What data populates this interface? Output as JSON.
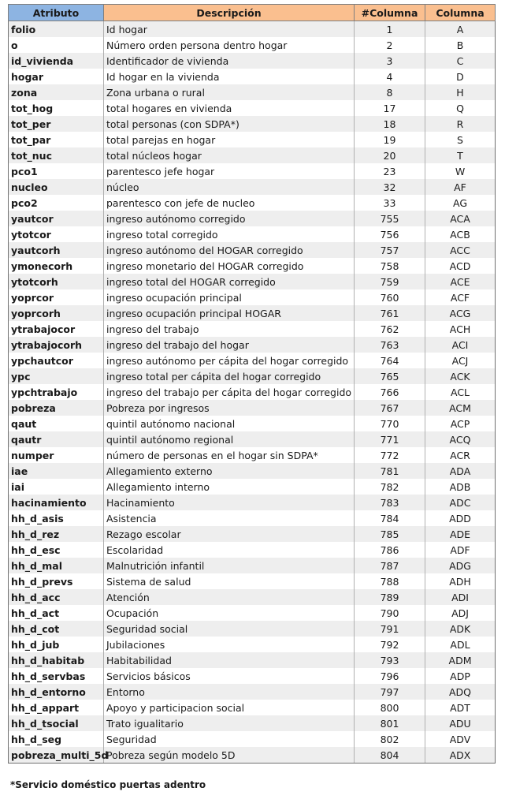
{
  "header": {
    "col1": "Atributo",
    "col2": "Descripción",
    "col3": "#Columna",
    "col4": "Columna"
  },
  "colors": {
    "header_blue": "#8db4e2",
    "header_orange": "#fabf8f",
    "row_alt": "#eeeeee"
  },
  "rows": [
    [
      "folio",
      "Id hogar",
      "1",
      "A"
    ],
    [
      "o",
      "Número orden persona dentro hogar",
      "2",
      "B"
    ],
    [
      "id_vivienda",
      "Identificador de vivienda",
      "3",
      "C"
    ],
    [
      "hogar",
      "Id hogar en la vivienda",
      "4",
      "D"
    ],
    [
      "zona",
      "Zona urbana o rural",
      "8",
      "H"
    ],
    [
      "tot_hog",
      "total hogares en vivienda",
      "17",
      "Q"
    ],
    [
      "tot_per",
      "total personas (con SDPA*)",
      "18",
      "R"
    ],
    [
      "tot_par",
      "total parejas en hogar",
      "19",
      "S"
    ],
    [
      "tot_nuc",
      "total núcleos hogar",
      "20",
      "T"
    ],
    [
      "pco1",
      "parentesco jefe hogar",
      "23",
      "W"
    ],
    [
      "nucleo",
      "núcleo",
      "32",
      "AF"
    ],
    [
      "pco2",
      "parentesco con jefe de nucleo",
      "33",
      "AG"
    ],
    [
      "yautcor",
      "ingreso autónomo corregido",
      "755",
      "ACA"
    ],
    [
      "ytotcor",
      "ingreso total corregido",
      "756",
      "ACB"
    ],
    [
      "yautcorh",
      "ingreso autónomo del HOGAR corregido",
      "757",
      "ACC"
    ],
    [
      "ymonecorh",
      "ingreso monetario del HOGAR corregido",
      "758",
      "ACD"
    ],
    [
      "ytotcorh",
      "ingreso total del HOGAR corregido",
      "759",
      "ACE"
    ],
    [
      "yoprcor",
      "ingreso ocupación principal",
      "760",
      "ACF"
    ],
    [
      "yoprcorh",
      "ingreso ocupación principal HOGAR",
      "761",
      "ACG"
    ],
    [
      "ytrabajocor",
      "ingreso del trabajo",
      "762",
      "ACH"
    ],
    [
      "ytrabajocorh",
      "ingreso del trabajo del hogar",
      "763",
      "ACI"
    ],
    [
      "ypchautcor",
      "ingreso autónomo per cápita del hogar corregido",
      "764",
      "ACJ"
    ],
    [
      "ypc",
      "ingreso total per cápita del hogar corregido",
      "765",
      "ACK"
    ],
    [
      "ypchtrabajo",
      "ingreso del trabajo per cápita del hogar corregido",
      "766",
      "ACL"
    ],
    [
      "pobreza",
      "Pobreza por ingresos",
      "767",
      "ACM"
    ],
    [
      "qaut",
      "quintil autónomo nacional",
      "770",
      "ACP"
    ],
    [
      "qautr",
      "quintil autónomo regional",
      "771",
      "ACQ"
    ],
    [
      "numper",
      "número de personas en el hogar sin SDPA*",
      "772",
      "ACR"
    ],
    [
      "iae",
      "Allegamiento externo",
      "781",
      "ADA"
    ],
    [
      "iai",
      "Allegamiento interno",
      "782",
      "ADB"
    ],
    [
      "hacinamiento",
      "Hacinamiento",
      "783",
      "ADC"
    ],
    [
      "hh_d_asis",
      "Asistencia",
      "784",
      "ADD"
    ],
    [
      "hh_d_rez",
      "Rezago escolar",
      "785",
      "ADE"
    ],
    [
      "hh_d_esc",
      "Escolaridad",
      "786",
      "ADF"
    ],
    [
      "hh_d_mal",
      "Malnutrición infantil",
      "787",
      "ADG"
    ],
    [
      "hh_d_prevs",
      "Sistema de salud",
      "788",
      "ADH"
    ],
    [
      "hh_d_acc",
      "Atención",
      "789",
      "ADI"
    ],
    [
      "hh_d_act",
      "Ocupación",
      "790",
      "ADJ"
    ],
    [
      "hh_d_cot",
      "Seguridad social",
      "791",
      "ADK"
    ],
    [
      "hh_d_jub",
      "Jubilaciones",
      "792",
      "ADL"
    ],
    [
      "hh_d_habitab",
      "Habitabilidad",
      "793",
      "ADM"
    ],
    [
      "hh_d_servbas",
      "Servicios básicos",
      "796",
      "ADP"
    ],
    [
      "hh_d_entorno",
      "Entorno",
      "797",
      "ADQ"
    ],
    [
      "hh_d_appart",
      "Apoyo y participacion social",
      "800",
      "ADT"
    ],
    [
      "hh_d_tsocial",
      "Trato igualitario",
      "801",
      "ADU"
    ],
    [
      "hh_d_seg",
      "Seguridad",
      "802",
      "ADV"
    ],
    [
      "pobreza_multi_5d",
      "Pobreza según modelo 5D",
      "804",
      "ADX"
    ]
  ],
  "footnote": "*Servicio doméstico puertas adentro"
}
